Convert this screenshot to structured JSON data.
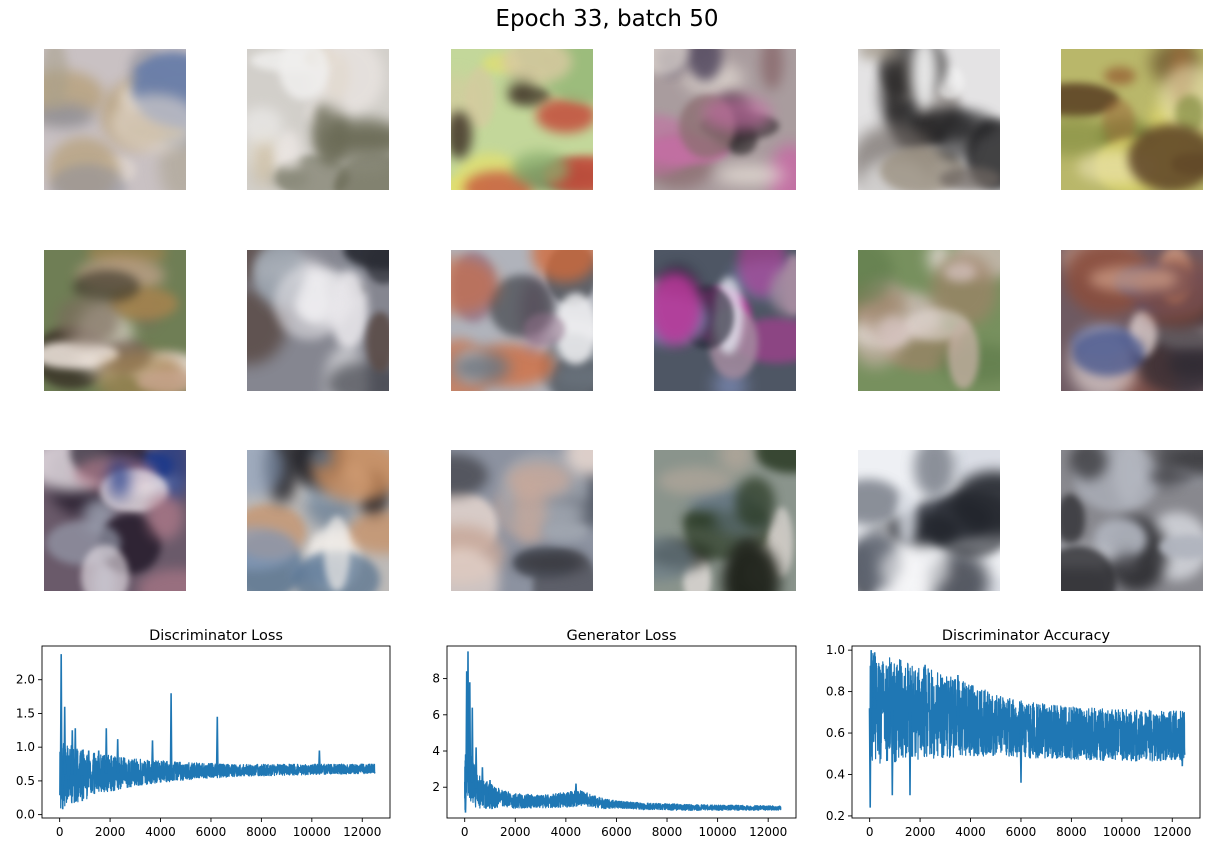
{
  "figure": {
    "title": "Epoch 33, batch 50"
  },
  "samples": {
    "rows": 3,
    "cols": 6,
    "items": [
      {
        "bg": "#c9c1c3",
        "colors": [
          "#8e8f9a",
          "#b8a27e",
          "#6b7fa9",
          "#e6dcd2",
          "#a79f8a"
        ]
      },
      {
        "bg": "#d2cfca",
        "colors": [
          "#f0efee",
          "#8a8a7a",
          "#c8b89a",
          "#efe9e6",
          "#6a6a55"
        ]
      },
      {
        "bg": "#c3d79a",
        "colors": [
          "#3a2c22",
          "#c44a3a",
          "#e5e06a",
          "#8bb070",
          "#d7c9a0"
        ]
      },
      {
        "bg": "#a99c9e",
        "colors": [
          "#c46fa4",
          "#5a5065",
          "#e8e0d8",
          "#2f2a2c",
          "#8d6f72"
        ]
      },
      {
        "bg": "#e4e3e4",
        "colors": [
          "#1a1a1c",
          "#2c2a2a",
          "#6d6560",
          "#f5f5f5",
          "#9a9080"
        ]
      },
      {
        "bg": "#b9b76a",
        "colors": [
          "#5e4426",
          "#9a6a3a",
          "#d8d268",
          "#efe6b8",
          "#7f8a3e"
        ]
      },
      {
        "bg": "#6f7e55",
        "colors": [
          "#c7a48d",
          "#3a3428",
          "#f0e6de",
          "#7b6a5c",
          "#a5834e"
        ]
      },
      {
        "bg": "#858690",
        "colors": [
          "#2a2c34",
          "#f4f4f6",
          "#5b4c48",
          "#9ba3ad",
          "#e8e6ea"
        ]
      },
      {
        "bg": "#b0b3bb",
        "colors": [
          "#d36a3a",
          "#2f3238",
          "#8e6f88",
          "#f0f0f2",
          "#6d7680"
        ]
      },
      {
        "bg": "#4e5664",
        "colors": [
          "#b9399a",
          "#e4e6f0",
          "#1f2230",
          "#7b89b3",
          "#a58ca0"
        ]
      },
      {
        "bg": "#77905e",
        "colors": [
          "#d3c0bc",
          "#e6dcd8",
          "#a08268",
          "#5e7a4a",
          "#c5b0a4"
        ]
      },
      {
        "bg": "#6e5a62",
        "colors": [
          "#3a4d8a",
          "#e6d8d6",
          "#8a4e3e",
          "#2c2830",
          "#d2a18a"
        ]
      },
      {
        "bg": "#6a5a6a",
        "colors": [
          "#e8e0e6",
          "#2a2030",
          "#1e3a8a",
          "#b07a8a",
          "#9aa0b0"
        ]
      },
      {
        "bg": "#bdbab8",
        "colors": [
          "#4b6a8a",
          "#f0ece8",
          "#1c1c22",
          "#c88a5a",
          "#8aa0c0"
        ]
      },
      {
        "bg": "#8c92a0",
        "colors": [
          "#c7a89a",
          "#525864",
          "#e8d8d0",
          "#3a3a40",
          "#a0a6b0"
        ]
      },
      {
        "bg": "#8a948c",
        "colors": [
          "#2a3a24",
          "#d8d4d0",
          "#1c2018",
          "#6b7c88",
          "#b0a69a"
        ]
      },
      {
        "bg": "#eef0f4",
        "colors": [
          "#22252c",
          "#3a3e48",
          "#f6f6f8",
          "#5c626e",
          "#d8dce4"
        ]
      },
      {
        "bg": "#88888e",
        "colors": [
          "#b0b4be",
          "#3c3c40",
          "#d0d2d8",
          "#5a5a60",
          "#28282c"
        ]
      }
    ]
  },
  "chart_data": [
    {
      "type": "line",
      "title": "Discriminator Loss",
      "xlim": [
        -700,
        13100
      ],
      "ylim": [
        -0.05,
        2.5
      ],
      "xticks": [
        0,
        2000,
        4000,
        6000,
        8000,
        10000,
        12000
      ],
      "yticks": [
        0.0,
        0.5,
        1.0,
        1.5,
        2.0
      ],
      "ytick_labels": [
        "0.0",
        "0.5",
        "1.0",
        "1.5",
        "2.0"
      ],
      "color": "#1f77b4",
      "x_max": 12500,
      "shape": {
        "points": [
          [
            0,
            0.55
          ],
          [
            200,
            0.6
          ],
          [
            800,
            0.58
          ],
          [
            1500,
            0.6
          ],
          [
            2500,
            0.62
          ],
          [
            4000,
            0.64
          ],
          [
            6000,
            0.65
          ],
          [
            8000,
            0.66
          ],
          [
            10000,
            0.67
          ],
          [
            12500,
            0.68
          ]
        ],
        "noise": [
          [
            0,
            0.5
          ],
          [
            1500,
            0.3
          ],
          [
            3000,
            0.2
          ],
          [
            5000,
            0.13
          ],
          [
            7000,
            0.09
          ],
          [
            12500,
            0.07
          ]
        ]
      },
      "spikes": [
        [
          60,
          2.38
        ],
        [
          120,
          0.08
        ],
        [
          200,
          1.6
        ],
        [
          350,
          0.4
        ],
        [
          500,
          1.25
        ],
        [
          620,
          1.28
        ],
        [
          900,
          0.2
        ],
        [
          1150,
          0.95
        ],
        [
          1550,
          0.95
        ],
        [
          1850,
          1.28
        ],
        [
          2300,
          1.12
        ],
        [
          3680,
          1.1
        ],
        [
          4420,
          1.8
        ],
        [
          6250,
          1.45
        ],
        [
          10300,
          0.95
        ]
      ]
    },
    {
      "type": "line",
      "title": "Generator Loss",
      "xlim": [
        -700,
        13100
      ],
      "ylim": [
        0.3,
        9.8
      ],
      "xticks": [
        0,
        2000,
        4000,
        6000,
        8000,
        10000,
        12000
      ],
      "yticks": [
        2,
        4,
        6,
        8
      ],
      "ytick_labels": [
        "2",
        "4",
        "6",
        "8"
      ],
      "color": "#1f77b4",
      "x_max": 12500,
      "shape": {
        "points": [
          [
            0,
            2.0
          ],
          [
            100,
            3.0
          ],
          [
            250,
            2.4
          ],
          [
            500,
            1.8
          ],
          [
            1000,
            1.5
          ],
          [
            2000,
            1.25
          ],
          [
            3000,
            1.2
          ],
          [
            4000,
            1.3
          ],
          [
            4500,
            1.4
          ],
          [
            5500,
            1.1
          ],
          [
            7000,
            0.95
          ],
          [
            9000,
            0.88
          ],
          [
            12500,
            0.85
          ]
        ],
        "noise": [
          [
            0,
            1.6
          ],
          [
            600,
            0.9
          ],
          [
            1500,
            0.45
          ],
          [
            3000,
            0.35
          ],
          [
            4500,
            0.45
          ],
          [
            6000,
            0.2
          ],
          [
            12500,
            0.12
          ]
        ]
      },
      "spikes": [
        [
          30,
          0.6
        ],
        [
          80,
          8.4
        ],
        [
          130,
          9.5
        ],
        [
          200,
          7.8
        ],
        [
          300,
          6.4
        ],
        [
          450,
          4.2
        ],
        [
          700,
          3.1
        ],
        [
          1000,
          2.4
        ],
        [
          4400,
          2.2
        ]
      ]
    },
    {
      "type": "line",
      "title": "Discriminator Accuracy",
      "xlim": [
        -700,
        13100
      ],
      "ylim": [
        0.19,
        1.02
      ],
      "xticks": [
        0,
        2000,
        4000,
        6000,
        8000,
        10000,
        12000
      ],
      "yticks": [
        0.2,
        0.4,
        0.6,
        0.8,
        1.0
      ],
      "ytick_labels": [
        "0.2",
        "0.4",
        "0.6",
        "0.8",
        "1.0"
      ],
      "color": "#1f77b4",
      "x_max": 12500,
      "shape": {
        "points": [
          [
            0,
            0.72
          ],
          [
            1000,
            0.71
          ],
          [
            2000,
            0.7
          ],
          [
            4000,
            0.66
          ],
          [
            6000,
            0.62
          ],
          [
            8000,
            0.6
          ],
          [
            10000,
            0.59
          ],
          [
            12500,
            0.585
          ]
        ],
        "noise": [
          [
            0,
            0.27
          ],
          [
            1500,
            0.24
          ],
          [
            3000,
            0.2
          ],
          [
            5000,
            0.15
          ],
          [
            7000,
            0.13
          ],
          [
            12500,
            0.12
          ]
        ]
      },
      "spikes": [
        [
          20,
          0.24
        ],
        [
          60,
          1.0
        ],
        [
          200,
          0.99
        ],
        [
          900,
          0.3
        ],
        [
          1600,
          0.3
        ],
        [
          2200,
          0.93
        ],
        [
          3500,
          0.88
        ],
        [
          6000,
          0.36
        ],
        [
          12400,
          0.44
        ]
      ]
    }
  ]
}
